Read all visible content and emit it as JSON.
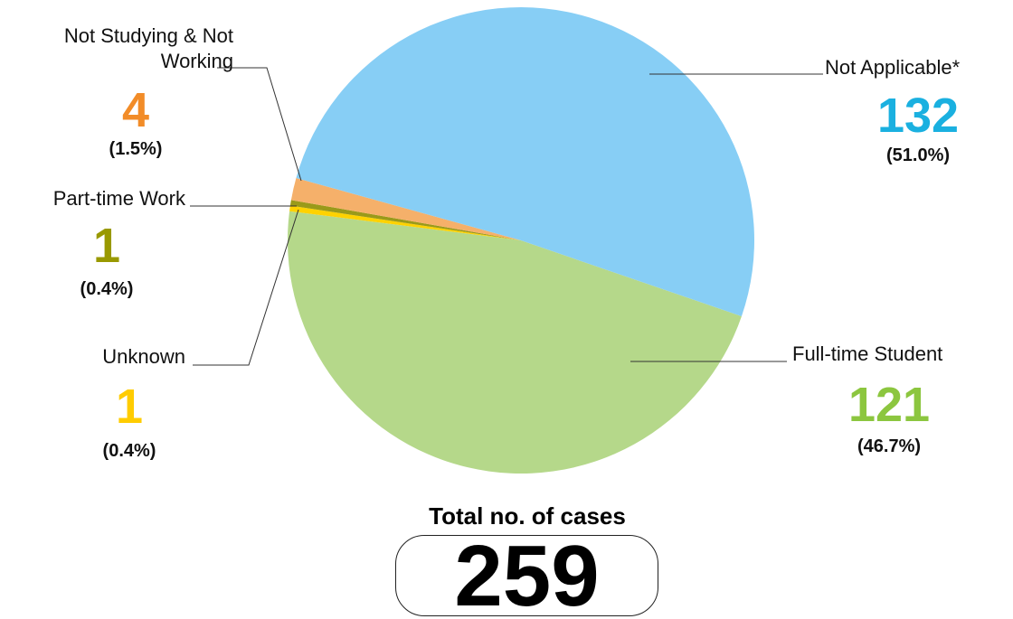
{
  "chart_data": {
    "type": "pie",
    "categories": [
      "Full-time Student",
      "Unknown",
      "Part-time Work",
      "Not Studying & Not Working",
      "Not Applicable*"
    ],
    "values": [
      121,
      1,
      1,
      4,
      132
    ],
    "shares": [
      46.7,
      0.4,
      0.4,
      1.5,
      51.0
    ],
    "share_labels": [
      "(46.7%)",
      "(0.4%)",
      "(0.4%)",
      "(1.5%)",
      "(51.0%)"
    ],
    "colors": [
      "#b5d88a",
      "#ffd200",
      "#9a9a1a",
      "#f5b06a",
      "#87cef5"
    ],
    "label_colors": [
      "#8cc63f",
      "#ffcc00",
      "#999900",
      "#f28c28",
      "#1ab0e0"
    ],
    "total_label": "Total no. of cases",
    "total": 259
  }
}
